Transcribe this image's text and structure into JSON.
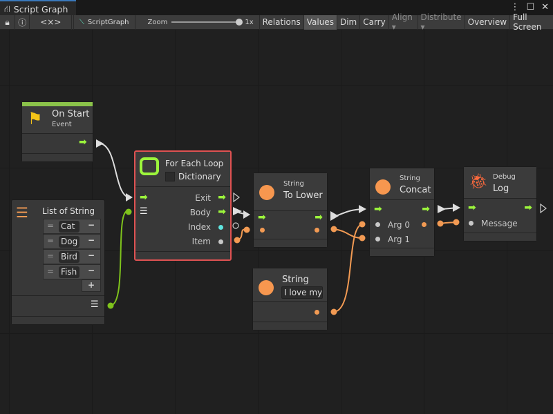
{
  "window": {
    "title": "Script Graph",
    "menu_icon": "kebab-icon",
    "maximize_icon": "maximize-icon",
    "close_icon": "close-icon"
  },
  "toolbar": {
    "graph_name": "ScriptGraph",
    "zoom_label": "Zoom",
    "zoom_value": "1x",
    "zoom_level": 1.0,
    "buttons": [
      {
        "label": "Relations",
        "active": false
      },
      {
        "label": "Values",
        "active": true
      },
      {
        "label": "Dim",
        "active": false
      },
      {
        "label": "Carry",
        "active": false
      },
      {
        "label": "Align ▾",
        "disabled": true
      },
      {
        "label": "Distribute ▾",
        "disabled": true
      },
      {
        "label": "Overview"
      },
      {
        "label": "Full Screen"
      }
    ]
  },
  "nodes": {
    "on_start": {
      "title": "On Start",
      "subtitle": "Event",
      "accent": "#8bc34a"
    },
    "list": {
      "title": "List of String",
      "items": [
        "Cat",
        "Dog",
        "Bird",
        "Fish"
      ],
      "add": "+",
      "remove": "−"
    },
    "for_each": {
      "title": "For Each Loop",
      "dictionary_label": "Dictionary",
      "dictionary_checked": false,
      "ports": [
        "Exit",
        "Body",
        "Index",
        "Item"
      ],
      "selected_color": "#e05252"
    },
    "to_lower": {
      "category": "String",
      "title": "To Lower"
    },
    "string_literal": {
      "title": "String",
      "value": "I love my"
    },
    "concat": {
      "category": "String",
      "title": "Concat",
      "ports": [
        "Arg 0",
        "Arg 1"
      ]
    },
    "debug_log": {
      "category": "Debug",
      "title": "Log",
      "ports": [
        "Message"
      ]
    }
  },
  "colors": {
    "flow": "#9cf53c",
    "string": "#f29a53",
    "index": "#5fe5e0"
  }
}
